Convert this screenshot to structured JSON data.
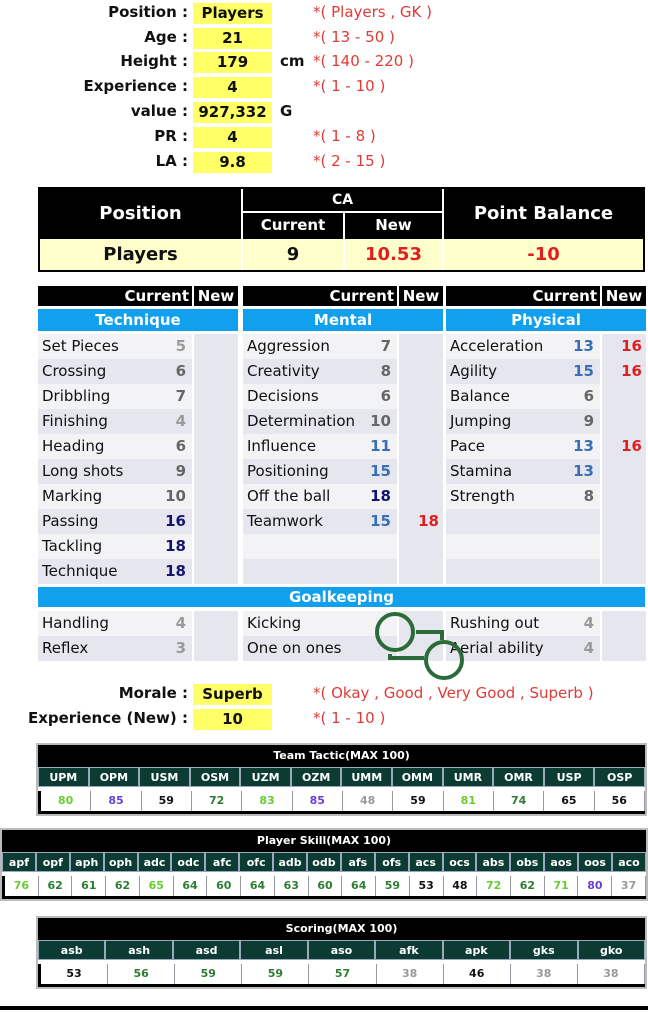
{
  "form": [
    {
      "label": "Position :",
      "value": "Players",
      "unit": "",
      "hint": "*( Players , GK )"
    },
    {
      "label": "Age :",
      "value": "21",
      "unit": "",
      "hint": "*( 13 - 50 )"
    },
    {
      "label": "Height :",
      "value": "179",
      "unit": "cm",
      "hint": "*( 140 - 220 )"
    },
    {
      "label": "Experience :",
      "value": "4",
      "unit": "",
      "hint": "*( 1 - 10 )"
    },
    {
      "label": "value :",
      "value": "927,332",
      "unit": "G",
      "hint": ""
    },
    {
      "label": "PR :",
      "value": "4",
      "unit": "",
      "hint": "*( 1 - 8 )"
    },
    {
      "label": "LA :",
      "value": "9.8",
      "unit": "",
      "hint": "*( 2 - 15 )"
    }
  ],
  "ca": {
    "position_h": "Position",
    "ca_h": "CA",
    "current_h": "Current",
    "new_h": "New",
    "balance_h": "Point Balance",
    "position": "Players",
    "current": "9",
    "new": "10.53",
    "balance": "-10"
  },
  "attr_header": {
    "current": "Current",
    "new": "New"
  },
  "groups": [
    {
      "title": "Technique",
      "rows": [
        [
          "Set Pieces",
          "5",
          ""
        ],
        [
          "Crossing",
          "6",
          ""
        ],
        [
          "Dribbling",
          "7",
          ""
        ],
        [
          "Finishing",
          "4",
          ""
        ],
        [
          "Heading",
          "6",
          ""
        ],
        [
          "Long shots",
          "9",
          ""
        ],
        [
          "Marking",
          "10",
          ""
        ],
        [
          "Passing",
          "16",
          ""
        ],
        [
          "Tackling",
          "18",
          ""
        ],
        [
          "Technique",
          "18",
          ""
        ]
      ]
    },
    {
      "title": "Mental",
      "rows": [
        [
          "Aggression",
          "7",
          ""
        ],
        [
          "Creativity",
          "8",
          ""
        ],
        [
          "Decisions",
          "6",
          ""
        ],
        [
          "Determination",
          "10",
          ""
        ],
        [
          "Influence",
          "11",
          ""
        ],
        [
          "Positioning",
          "15",
          ""
        ],
        [
          "Off the ball",
          "18",
          ""
        ],
        [
          "Teamwork",
          "15",
          "18"
        ],
        [
          "",
          "",
          ""
        ],
        [
          "",
          "",
          ""
        ]
      ]
    },
    {
      "title": "Physical",
      "rows": [
        [
          "Acceleration",
          "13",
          "16"
        ],
        [
          "Agility",
          "15",
          "16"
        ],
        [
          "Balance",
          "6",
          ""
        ],
        [
          "Jumping",
          "9",
          ""
        ],
        [
          "Pace",
          "13",
          "16"
        ],
        [
          "Stamina",
          "13",
          ""
        ],
        [
          "Strength",
          "8",
          ""
        ],
        [
          "",
          "",
          ""
        ],
        [
          "",
          "",
          ""
        ],
        [
          "",
          "",
          ""
        ]
      ]
    }
  ],
  "goalkeeping": {
    "title": "Goalkeeping",
    "cols": [
      [
        [
          "Handling",
          "4"
        ],
        [
          "Reflex",
          "3"
        ]
      ],
      [
        [
          "Kicking",
          ""
        ],
        [
          "One on ones",
          ""
        ]
      ],
      [
        [
          "Rushing out",
          "4"
        ],
        [
          "Aerial ability",
          "4"
        ]
      ]
    ]
  },
  "morale": {
    "label": "Morale :",
    "value": "Superb",
    "hint": "*( Okay , Good , Very Good , Superb )"
  },
  "exp_new": {
    "label": "Experience (New) :",
    "value": "10",
    "hint": "*( 1 - 10 )"
  },
  "colors": {
    "lg": "#66cc33",
    "dg": "#2e7d32",
    "pu": "#6a3fd0",
    "gr": "#999999",
    "bk": "#111111"
  },
  "tactic": {
    "title": "Team Tactic(MAX 100)",
    "cols": [
      "UPM",
      "OPM",
      "USM",
      "OSM",
      "UZM",
      "OZM",
      "UMM",
      "OMM",
      "UMR",
      "OMR",
      "USP",
      "OSP"
    ],
    "values": [
      "80",
      "85",
      "59",
      "72",
      "83",
      "85",
      "48",
      "59",
      "81",
      "74",
      "65",
      "56"
    ],
    "tones": [
      "lg",
      "pu",
      "bk",
      "dg",
      "lg",
      "pu",
      "gr",
      "bk",
      "lg",
      "dg",
      "bk",
      "bk"
    ]
  },
  "skill": {
    "title": "Player Skill(MAX 100)",
    "cols": [
      "apf",
      "opf",
      "aph",
      "oph",
      "adc",
      "odc",
      "afc",
      "ofc",
      "adb",
      "odb",
      "afs",
      "ofs",
      "acs",
      "ocs",
      "abs",
      "obs",
      "aos",
      "oos",
      "aco"
    ],
    "values": [
      "76",
      "62",
      "61",
      "62",
      "65",
      "64",
      "60",
      "64",
      "63",
      "60",
      "64",
      "59",
      "53",
      "48",
      "72",
      "62",
      "71",
      "80",
      "37"
    ],
    "tones": [
      "lg",
      "dg",
      "dg",
      "dg",
      "lg",
      "dg",
      "dg",
      "dg",
      "dg",
      "dg",
      "dg",
      "dg",
      "bk",
      "bk",
      "lg",
      "dg",
      "lg",
      "pu",
      "gr"
    ]
  },
  "scoring": {
    "title": "Scoring(MAX 100)",
    "cols": [
      "asb",
      "ash",
      "asd",
      "asl",
      "aso",
      "afk",
      "apk",
      "gks",
      "gko"
    ],
    "values": [
      "53",
      "56",
      "59",
      "59",
      "57",
      "38",
      "46",
      "38",
      "38"
    ],
    "tones": [
      "bk",
      "dg",
      "dg",
      "dg",
      "dg",
      "gr",
      "bk",
      "gr",
      "gr"
    ]
  }
}
